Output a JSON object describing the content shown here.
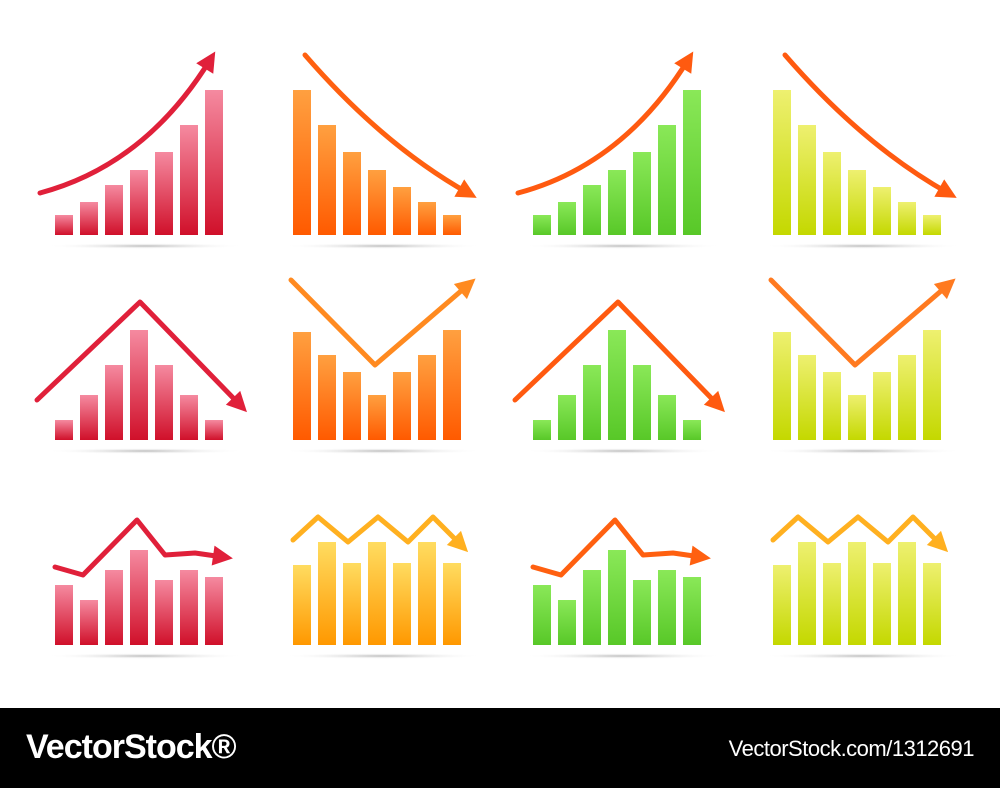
{
  "footer": {
    "logo": "VectorStock®",
    "image_id": "VectorStock.com/1312691"
  }
}
